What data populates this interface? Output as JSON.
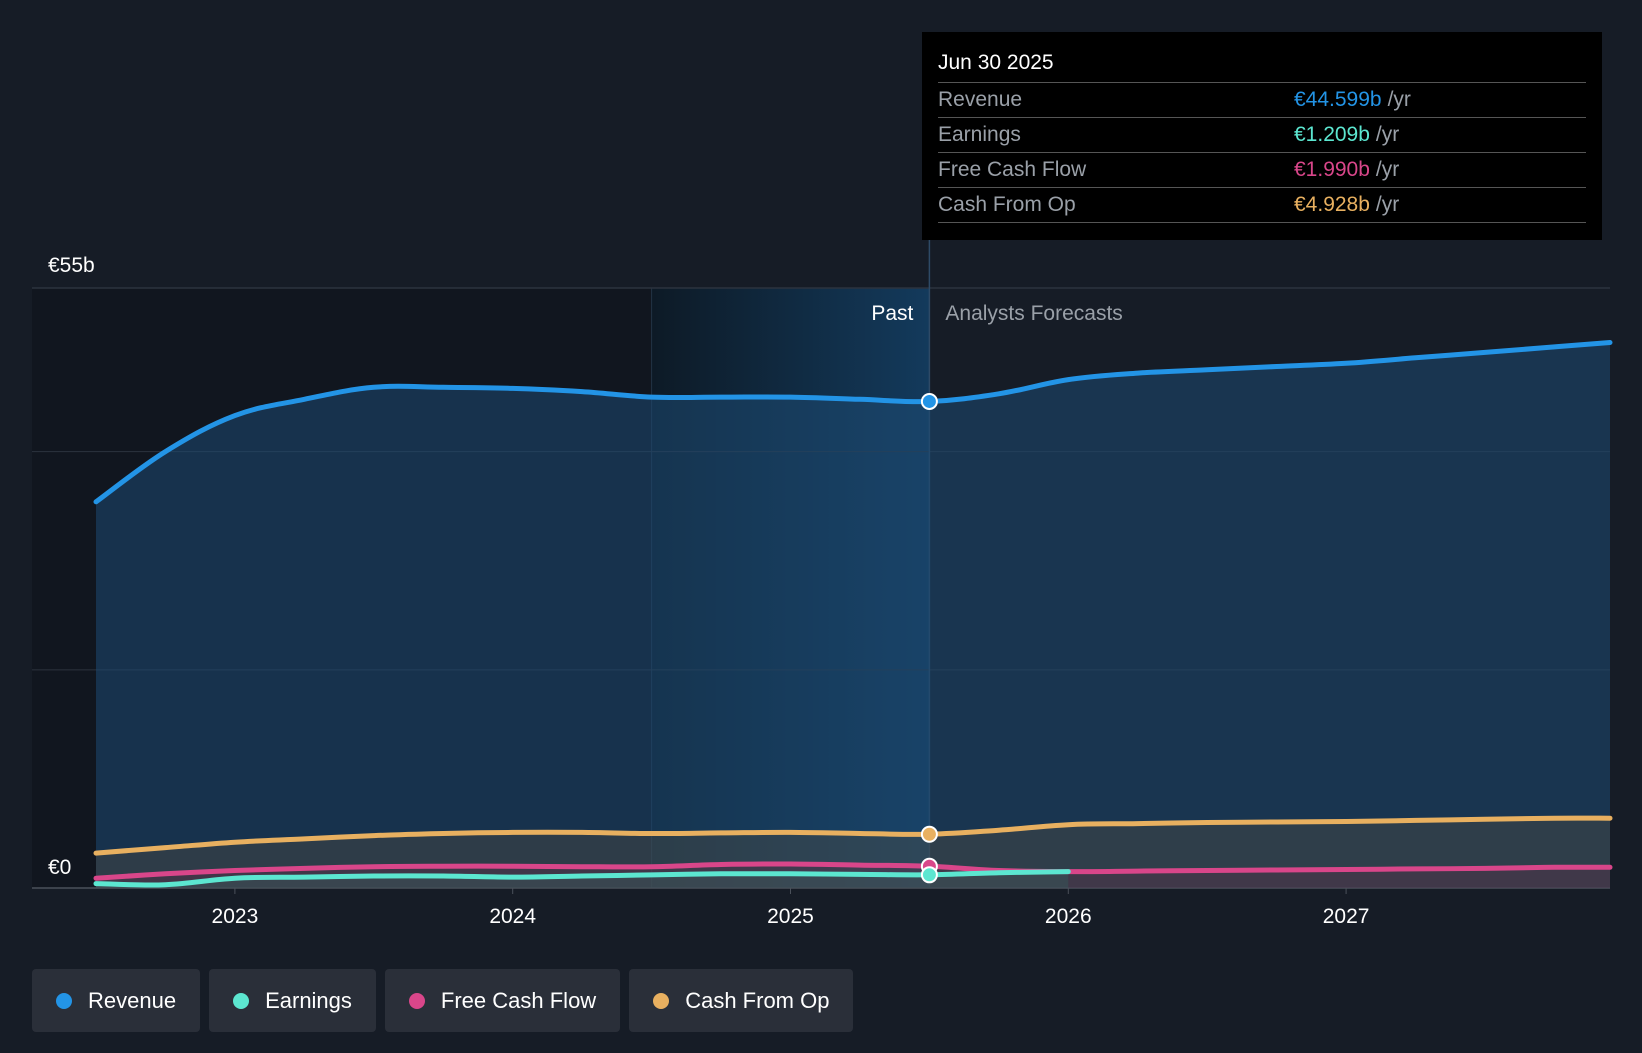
{
  "colors": {
    "background": "#161c26",
    "revenue": "#2394e6",
    "earnings": "#5ce6d0",
    "free_cash_flow": "#d9468a",
    "cash_from_op": "#e8b060"
  },
  "tooltip": {
    "date": "Jun 30 2025",
    "rows": [
      {
        "label": "Revenue",
        "value": "€44.599b",
        "unit": "/yr",
        "color": "#2394e6"
      },
      {
        "label": "Earnings",
        "value": "€1.209b",
        "unit": "/yr",
        "color": "#5ce6d0"
      },
      {
        "label": "Free Cash Flow",
        "value": "€1.990b",
        "unit": "/yr",
        "color": "#d9468a"
      },
      {
        "label": "Cash From Op",
        "value": "€4.928b",
        "unit": "/yr",
        "color": "#e8b060"
      }
    ]
  },
  "legend": [
    {
      "label": "Revenue",
      "color": "#2394e6"
    },
    {
      "label": "Earnings",
      "color": "#5ce6d0"
    },
    {
      "label": "Free Cash Flow",
      "color": "#d9468a"
    },
    {
      "label": "Cash From Op",
      "color": "#e8b060"
    }
  ],
  "chart_data": {
    "type": "area",
    "title": "",
    "y_unit": "€b",
    "ylim": [
      0,
      55
    ],
    "y_tick_labels": [
      {
        "value": 55,
        "label": "€55b"
      },
      {
        "value": 0,
        "label": "€0"
      }
    ],
    "y_gridlines": [
      0,
      20,
      40,
      55
    ],
    "xlim": [
      2022.5,
      2027.95
    ],
    "x_ticks": [
      {
        "value": 2023,
        "label": "2023"
      },
      {
        "value": 2024,
        "label": "2024"
      },
      {
        "value": 2025,
        "label": "2025"
      },
      {
        "value": 2026,
        "label": "2026"
      },
      {
        "value": 2027,
        "label": "2027"
      }
    ],
    "past_label": "Past",
    "forecast_label": "Analysts Forecasts",
    "past_highlight_start": 2024.5,
    "divider_x": 2025.5,
    "series": [
      {
        "name": "Revenue",
        "key": "revenue",
        "color": "#2394e6",
        "points": [
          [
            2022.5,
            35.4
          ],
          [
            2022.75,
            40.0
          ],
          [
            2023.0,
            43.3
          ],
          [
            2023.25,
            44.8
          ],
          [
            2023.5,
            45.9
          ],
          [
            2023.75,
            45.9
          ],
          [
            2024.0,
            45.8
          ],
          [
            2024.25,
            45.5
          ],
          [
            2024.5,
            45.0
          ],
          [
            2024.75,
            45.0
          ],
          [
            2025.0,
            45.0
          ],
          [
            2025.25,
            44.8
          ],
          [
            2025.5,
            44.6
          ],
          [
            2025.75,
            45.3
          ],
          [
            2026.0,
            46.6
          ],
          [
            2026.25,
            47.2
          ],
          [
            2026.5,
            47.5
          ],
          [
            2026.75,
            47.8
          ],
          [
            2027.0,
            48.1
          ],
          [
            2027.25,
            48.6
          ],
          [
            2027.5,
            49.1
          ],
          [
            2027.75,
            49.6
          ],
          [
            2027.95,
            50.0
          ]
        ]
      },
      {
        "name": "Cash From Op",
        "key": "cash_from_op",
        "color": "#e8b060",
        "points": [
          [
            2022.5,
            3.2
          ],
          [
            2022.75,
            3.7
          ],
          [
            2023.0,
            4.2
          ],
          [
            2023.25,
            4.5
          ],
          [
            2023.5,
            4.8
          ],
          [
            2023.75,
            5.0
          ],
          [
            2024.0,
            5.1
          ],
          [
            2024.25,
            5.1
          ],
          [
            2024.5,
            5.0
          ],
          [
            2024.75,
            5.05
          ],
          [
            2025.0,
            5.1
          ],
          [
            2025.25,
            5.0
          ],
          [
            2025.5,
            4.93
          ],
          [
            2025.75,
            5.3
          ],
          [
            2026.0,
            5.8
          ],
          [
            2026.25,
            5.9
          ],
          [
            2026.5,
            6.0
          ],
          [
            2026.75,
            6.05
          ],
          [
            2027.0,
            6.1
          ],
          [
            2027.25,
            6.2
          ],
          [
            2027.5,
            6.3
          ],
          [
            2027.75,
            6.4
          ],
          [
            2027.95,
            6.4
          ]
        ]
      },
      {
        "name": "Free Cash Flow",
        "key": "free_cash_flow",
        "color": "#d9468a",
        "points": [
          [
            2022.5,
            0.9
          ],
          [
            2022.75,
            1.3
          ],
          [
            2023.0,
            1.6
          ],
          [
            2023.25,
            1.8
          ],
          [
            2023.5,
            1.95
          ],
          [
            2023.75,
            2.0
          ],
          [
            2024.0,
            2.0
          ],
          [
            2024.25,
            1.95
          ],
          [
            2024.5,
            1.95
          ],
          [
            2024.75,
            2.15
          ],
          [
            2025.0,
            2.2
          ],
          [
            2025.25,
            2.1
          ],
          [
            2025.5,
            1.99
          ],
          [
            2025.75,
            1.6
          ],
          [
            2026.0,
            1.5
          ],
          [
            2026.25,
            1.55
          ],
          [
            2026.5,
            1.6
          ],
          [
            2026.75,
            1.65
          ],
          [
            2027.0,
            1.7
          ],
          [
            2027.25,
            1.75
          ],
          [
            2027.5,
            1.8
          ],
          [
            2027.75,
            1.9
          ],
          [
            2027.95,
            1.9
          ]
        ]
      },
      {
        "name": "Earnings",
        "key": "earnings",
        "color": "#5ce6d0",
        "points": [
          [
            2022.5,
            0.4
          ],
          [
            2022.75,
            0.3
          ],
          [
            2023.0,
            0.9
          ],
          [
            2023.25,
            1.0
          ],
          [
            2023.5,
            1.1
          ],
          [
            2023.75,
            1.1
          ],
          [
            2024.0,
            1.0
          ],
          [
            2024.25,
            1.1
          ],
          [
            2024.5,
            1.2
          ],
          [
            2024.75,
            1.3
          ],
          [
            2025.0,
            1.3
          ],
          [
            2025.25,
            1.25
          ],
          [
            2025.5,
            1.209
          ],
          [
            2025.75,
            1.4
          ],
          [
            2026.0,
            1.5
          ]
        ]
      }
    ]
  }
}
